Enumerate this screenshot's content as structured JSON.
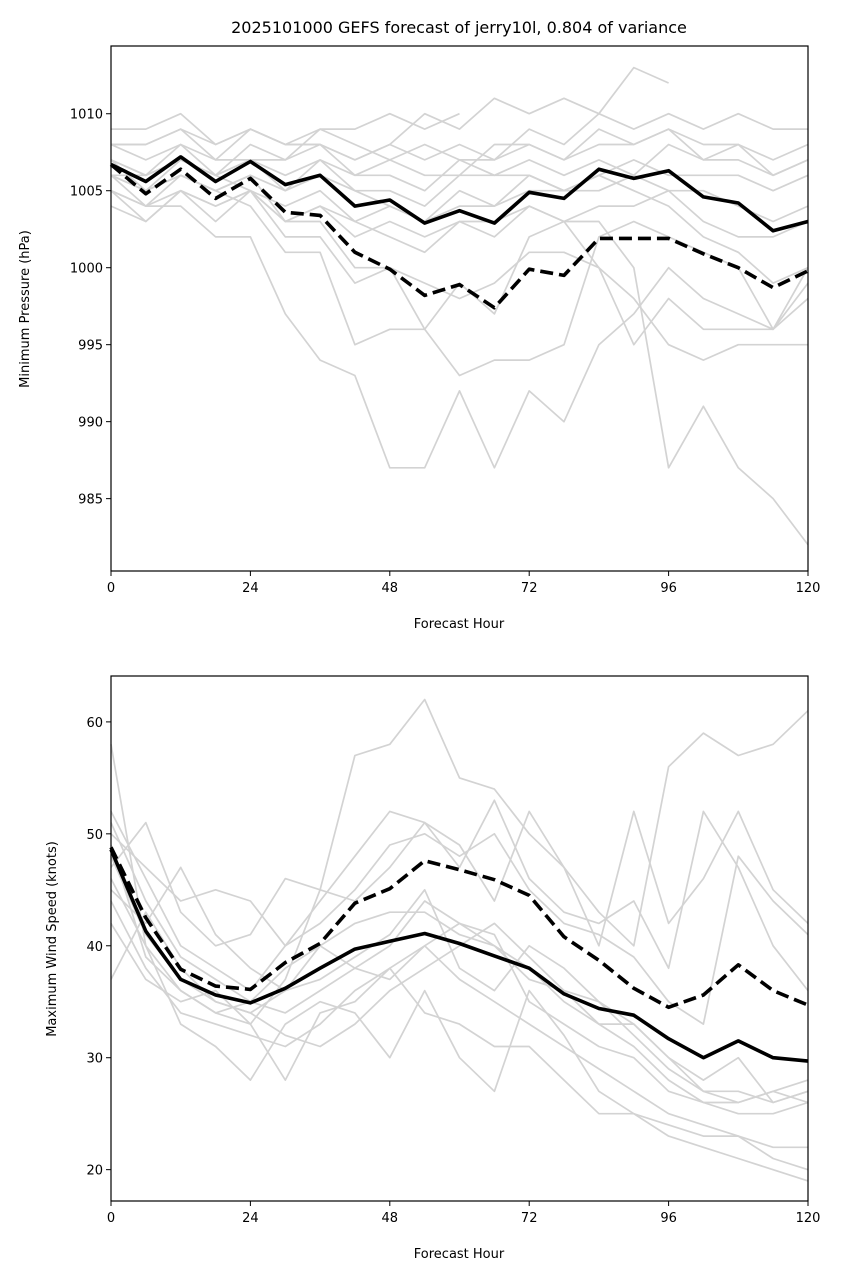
{
  "title": "2025101000 GEFS forecast of jerry10l, 0.804 of variance",
  "colors": {
    "member": "#d3d3d3",
    "mean": "#000000",
    "dashed": "#000000"
  },
  "chart_data": [
    {
      "type": "line",
      "panel": "top",
      "title": "2025101000 GEFS forecast of jerry10l, 0.804 of variance",
      "xlabel": "Forecast Hour",
      "ylabel": "Minimum Pressure (hPa)",
      "xlim": [
        0,
        120
      ],
      "ylim": [
        980.3,
        1014.4
      ],
      "xticks": [
        "0",
        "24",
        "48",
        "72",
        "96",
        "120"
      ],
      "yticks": [
        "985",
        "990",
        "995",
        "1000",
        "1005",
        "1010"
      ],
      "grid": false,
      "x": [
        0,
        6,
        12,
        18,
        24,
        30,
        36,
        42,
        48,
        54,
        60,
        66,
        72,
        78,
        84,
        90,
        96,
        102,
        108,
        114,
        120
      ],
      "series": [
        {
          "name": "mean",
          "style": "solid",
          "values": [
            1006.7,
            1005.6,
            1007.2,
            1005.6,
            1006.9,
            1005.4,
            1006.0,
            1004.0,
            1004.4,
            1002.9,
            1003.7,
            1002.9,
            1004.9,
            1004.5,
            1006.4,
            1005.8,
            1006.3,
            1004.6,
            1004.2,
            1002.4,
            1003.0
          ]
        },
        {
          "name": "dashed",
          "style": "dashed",
          "values": [
            1006.7,
            1004.8,
            1006.4,
            1004.5,
            1005.8,
            1003.6,
            1003.4,
            1001.0,
            999.9,
            998.2,
            998.9,
            997.4,
            999.9,
            999.5,
            1001.9,
            1001.9,
            1001.9,
            1000.9,
            1000.0,
            998.7,
            999.8
          ]
        },
        {
          "name": "member-1",
          "style": "member",
          "values": [
            1009,
            1009,
            1010,
            1008,
            1009,
            1008,
            1009,
            1009,
            1010,
            1009,
            1010
          ]
        },
        {
          "name": "member-2",
          "style": "member",
          "values": [
            1008,
            1008,
            1009,
            1007,
            1009,
            1008,
            1008,
            1007,
            1008,
            1010,
            1009,
            1011,
            1010,
            1011,
            1010,
            1013,
            1012
          ]
        },
        {
          "name": "member-3",
          "style": "member",
          "values": [
            1008,
            1007,
            1008,
            1006,
            1008,
            1007,
            1009,
            1008,
            1007,
            1008,
            1007,
            1007,
            1009,
            1008,
            1010,
            1009,
            1010,
            1009,
            1010,
            1009,
            1009
          ]
        },
        {
          "name": "member-4",
          "style": "member",
          "values": [
            1007,
            1006,
            1007,
            1006,
            1007,
            1007,
            1008,
            1006,
            1007,
            1006,
            1006,
            1008,
            1008,
            1007,
            1008,
            1008,
            1009,
            1008,
            1008,
            1007,
            1008
          ]
        },
        {
          "name": "member-5",
          "style": "member",
          "values": [
            1007,
            1006,
            1008,
            1007,
            1007,
            1006,
            1007,
            1006,
            1006,
            1005,
            1007,
            1006,
            1007,
            1006,
            1007,
            1006,
            1008,
            1007,
            1008,
            1006,
            1007
          ]
        },
        {
          "name": "member-6",
          "style": "member",
          "values": [
            1006,
            1005,
            1006,
            1005,
            1006,
            1005,
            1006,
            1005,
            1005,
            1004,
            1006,
            1006,
            1006,
            1005,
            1006,
            1007,
            1006,
            1006,
            1006,
            1005,
            1006
          ]
        },
        {
          "name": "member-7",
          "style": "member",
          "values": [
            1006,
            1004,
            1005,
            1004,
            1005,
            1004,
            1005,
            1003,
            1004,
            1003,
            1005,
            1004,
            1005,
            1005,
            1005,
            1006,
            1005,
            1005,
            1004,
            1003,
            1004
          ]
        },
        {
          "name": "member-8",
          "style": "member",
          "values": [
            1005,
            1003,
            1005,
            1003,
            1005,
            1003,
            1004,
            1002,
            1003,
            1002,
            1003,
            1002,
            1004,
            1003,
            1004,
            1004,
            1005,
            1003,
            1002,
            1002,
            1003
          ]
        },
        {
          "name": "member-9",
          "style": "member",
          "values": [
            1005,
            1004,
            1004,
            1002,
            1002,
            997,
            994,
            993,
            987,
            987,
            992,
            987,
            992,
            990,
            995,
            997,
            1000,
            998,
            997,
            996,
            999
          ]
        },
        {
          "name": "member-10",
          "style": "member",
          "values": [
            1004,
            1003,
            1005,
            1004,
            1005,
            1002,
            1002,
            999,
            1000,
            996,
            993,
            994,
            994,
            995,
            1002,
            1003,
            1002,
            1001,
            1000,
            996,
            1000
          ]
        },
        {
          "name": "member-11",
          "style": "member",
          "values": [
            1005,
            1004,
            1006,
            1005,
            1004,
            1001,
            1001,
            995,
            996,
            996,
            999,
            997,
            1002,
            1003,
            1003,
            1000,
            987,
            991,
            987,
            985,
            982
          ]
        },
        {
          "name": "member-12",
          "style": "member",
          "values": [
            1006,
            1005,
            1007,
            1006,
            1005,
            1003,
            1003,
            1000,
            1000,
            999,
            998,
            999,
            1001,
            1001,
            1000,
            998,
            995,
            994,
            995,
            995,
            995
          ]
        },
        {
          "name": "member-13",
          "style": "member",
          "values": [
            1007,
            1005,
            1006,
            1005,
            1006,
            1003,
            1004,
            1003,
            1002,
            1001,
            1003,
            1003,
            1004,
            1003,
            1000,
            995,
            998,
            996,
            996,
            996,
            998
          ]
        },
        {
          "name": "member-14",
          "style": "member",
          "values": [
            1006,
            1006,
            1007,
            1006,
            1007,
            1005,
            1007,
            1005,
            1004,
            1003,
            1004,
            1004,
            1006,
            1005,
            1006,
            1005,
            1004,
            1002,
            1001,
            999,
            1000
          ]
        },
        {
          "name": "member-15",
          "style": "member",
          "values": [
            1008,
            1008,
            1009,
            1008,
            1009,
            1008,
            1008,
            1007,
            1008,
            1007,
            1008,
            1007,
            1008,
            1007,
            1009,
            1008,
            1009,
            1007,
            1007,
            1006,
            1007
          ]
        }
      ]
    },
    {
      "type": "line",
      "panel": "bottom",
      "title": "",
      "xlabel": "Forecast Hour",
      "ylabel": "Maximum Wind Speed (knots)",
      "xlim": [
        0,
        120
      ],
      "ylim": [
        17.2,
        64.1
      ],
      "xticks": [
        "0",
        "24",
        "48",
        "72",
        "96",
        "120"
      ],
      "yticks": [
        "20",
        "30",
        "40",
        "50",
        "60"
      ],
      "grid": false,
      "x": [
        0,
        6,
        12,
        18,
        24,
        30,
        36,
        42,
        48,
        54,
        60,
        66,
        72,
        78,
        84,
        90,
        96,
        102,
        108,
        114,
        120
      ],
      "series": [
        {
          "name": "mean",
          "style": "solid",
          "values": [
            48.6,
            41.3,
            37.0,
            35.6,
            34.9,
            36.2,
            38.0,
            39.7,
            40.4,
            41.1,
            40.2,
            39.1,
            38.0,
            35.7,
            34.4,
            33.8,
            31.7,
            30.0,
            31.5,
            30.0,
            29.7
          ]
        },
        {
          "name": "dashed",
          "style": "dashed",
          "values": [
            48.8,
            42.5,
            37.9,
            36.4,
            36.1,
            38.5,
            40.2,
            43.8,
            45.1,
            47.6,
            46.8,
            45.9,
            44.5,
            40.8,
            38.7,
            36.2,
            34.5,
            35.6,
            38.3,
            36.0,
            34.7
          ]
        },
        {
          "name": "member-1",
          "style": "member",
          "values": [
            58,
            40,
            36,
            34,
            33,
            37,
            45,
            57,
            58,
            62,
            55,
            54,
            50,
            47,
            43,
            40,
            56,
            59,
            57,
            58,
            61
          ]
        },
        {
          "name": "member-2",
          "style": "member",
          "values": [
            52,
            46,
            40,
            38,
            36,
            40,
            44,
            48,
            52,
            51,
            47,
            53,
            46,
            43,
            42,
            44,
            38,
            52,
            47,
            40,
            36
          ]
        },
        {
          "name": "member-3",
          "style": "member",
          "values": [
            50,
            47,
            44,
            45,
            44,
            40,
            42,
            45,
            49,
            50,
            48,
            50,
            45,
            42,
            41,
            39,
            35,
            33,
            48,
            44,
            41
          ]
        },
        {
          "name": "member-4",
          "style": "member",
          "values": [
            47,
            51,
            43,
            40,
            41,
            46,
            45,
            44,
            47,
            51,
            49,
            44,
            52,
            47,
            40,
            52,
            42,
            46,
            52,
            45,
            42
          ]
        },
        {
          "name": "member-5",
          "style": "member",
          "values": [
            45,
            42,
            47,
            41,
            38,
            36,
            40,
            42,
            43,
            43,
            41,
            40,
            37,
            36,
            35,
            33,
            30,
            28,
            30,
            26,
            27
          ]
        },
        {
          "name": "member-6",
          "style": "member",
          "values": [
            44,
            38,
            34,
            33,
            32,
            31,
            33,
            36,
            38,
            40,
            37,
            35,
            33,
            31,
            29,
            27,
            25,
            24,
            23,
            21,
            20
          ]
        },
        {
          "name": "member-7",
          "style": "member",
          "values": [
            46,
            40,
            33,
            31,
            28,
            33,
            35,
            34,
            30,
            36,
            30,
            27,
            36,
            32,
            27,
            25,
            23,
            22,
            21,
            20,
            19
          ]
        },
        {
          "name": "member-8",
          "style": "member",
          "values": [
            42,
            37,
            35,
            36,
            33,
            28,
            34,
            35,
            38,
            34,
            33,
            31,
            31,
            28,
            25,
            25,
            24,
            23,
            23,
            22,
            22
          ]
        },
        {
          "name": "member-9",
          "style": "member",
          "values": [
            37,
            43,
            38,
            35,
            34,
            32,
            31,
            33,
            36,
            38,
            40,
            42,
            39,
            36,
            33,
            31,
            28,
            26,
            25,
            25,
            26
          ]
        },
        {
          "name": "member-10",
          "style": "member",
          "values": [
            49,
            39,
            36,
            34,
            35,
            38,
            40,
            38,
            40,
            44,
            42,
            40,
            38,
            35,
            33,
            33,
            30,
            27,
            26,
            27,
            28
          ]
        },
        {
          "name": "member-11",
          "style": "member",
          "values": [
            48,
            41,
            37,
            35,
            34,
            36,
            37,
            39,
            41,
            45,
            38,
            36,
            40,
            38,
            35,
            32,
            29,
            27,
            27,
            26,
            27
          ]
        },
        {
          "name": "member-12",
          "style": "member",
          "values": [
            51,
            44,
            39,
            37,
            35,
            34,
            36,
            38,
            37,
            40,
            42,
            41,
            35,
            33,
            31,
            30,
            27,
            26,
            26,
            27,
            26
          ]
        }
      ]
    }
  ]
}
